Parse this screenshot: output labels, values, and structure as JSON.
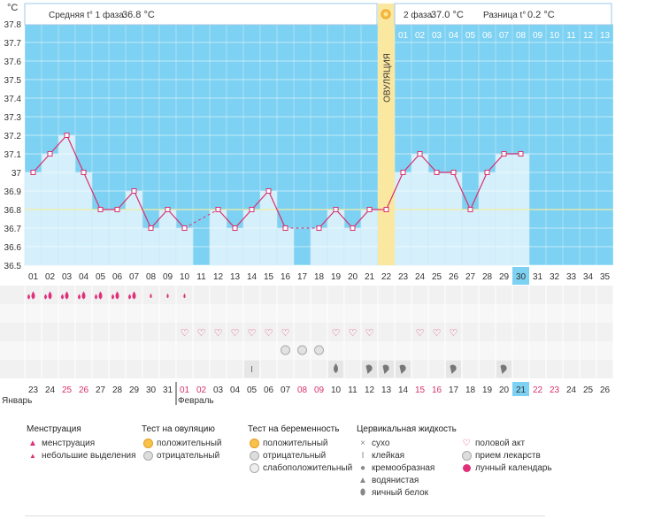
{
  "header": {
    "unit": "°C",
    "phase1_label": "Средняя t° 1 фаза",
    "phase1_value": "36.8 °C",
    "phase2_label": "2 фаза",
    "phase2_value": "37.0 °C",
    "diff_label": "Разница t°",
    "diff_value": "0.2 °C"
  },
  "chart_data": {
    "type": "line",
    "title": "",
    "ylabel": "°C",
    "ylim": [
      36.5,
      37.8
    ],
    "yticks": [
      "36.5",
      "36.6",
      "36.7",
      "36.8",
      "36.9",
      "37",
      "37.1",
      "37.2",
      "37.3",
      "37.4",
      "37.5",
      "37.6",
      "37.7",
      "37.8"
    ],
    "cycle_days": [
      "01",
      "02",
      "03",
      "04",
      "05",
      "06",
      "07",
      "08",
      "09",
      "10",
      "11",
      "12",
      "13",
      "14",
      "15",
      "16",
      "17",
      "18",
      "19",
      "20",
      "21",
      "22",
      "23",
      "24",
      "25",
      "26",
      "27",
      "28",
      "29",
      "30",
      "31",
      "32",
      "33",
      "34",
      "35"
    ],
    "temperatures": [
      37.0,
      37.1,
      37.2,
      37.0,
      36.8,
      36.8,
      36.9,
      36.7,
      36.8,
      36.7,
      null,
      36.8,
      36.7,
      36.8,
      36.9,
      36.7,
      null,
      36.7,
      36.8,
      36.7,
      36.8,
      36.8,
      37.0,
      37.1,
      37.0,
      37.0,
      36.8,
      37.0,
      37.1,
      37.1,
      null,
      null,
      null,
      null,
      null
    ],
    "coverline": 36.8,
    "ovulation_day": 22,
    "current_cycle_day": 30,
    "phase2_day_labels": [
      "01",
      "02",
      "03",
      "04",
      "05",
      "06",
      "07",
      "08",
      "09",
      "10",
      "11",
      "12",
      "13"
    ],
    "ovulation_label": "ОВУЛЯЦИЯ",
    "calendar_dates": [
      "23",
      "24",
      "25",
      "26",
      "27",
      "28",
      "29",
      "30",
      "31",
      "01",
      "02",
      "03",
      "04",
      "05",
      "06",
      "07",
      "08",
      "09",
      "10",
      "11",
      "12",
      "13",
      "14",
      "15",
      "16",
      "17",
      "18",
      "19",
      "20",
      "21",
      "22",
      "23",
      "24",
      "25",
      "26"
    ],
    "weekend_indices": [
      2,
      3,
      9,
      10,
      16,
      17,
      23,
      24,
      30,
      31
    ],
    "month1": "Январь",
    "month2": "Февраль",
    "menstruation": [
      2,
      2,
      2,
      2,
      2,
      2,
      2,
      1,
      1,
      1
    ],
    "sex_days": [
      10,
      11,
      12,
      13,
      14,
      15,
      16,
      19,
      20,
      21,
      24,
      25,
      26
    ],
    "pregnancy_test_days": [
      16,
      17,
      18
    ],
    "cervical": [
      {
        "day": 14,
        "type": "sticky"
      },
      {
        "day": 19,
        "type": "watery"
      },
      {
        "day": 21,
        "type": "creamy"
      },
      {
        "day": 22,
        "type": "creamy"
      },
      {
        "day": 23,
        "type": "creamy"
      },
      {
        "day": 26,
        "type": "creamy"
      },
      {
        "day": 29,
        "type": "creamy"
      }
    ]
  },
  "legend": {
    "menstruation": {
      "title": "Менструация",
      "items": [
        "менструация",
        "небольшие выделения"
      ]
    },
    "ovulation_test": {
      "title": "Тест на овуляцию",
      "items": [
        "положительный",
        "отрицательный"
      ]
    },
    "pregnancy_test": {
      "title": "Тест на беременность",
      "items": [
        "положительный",
        "отрицательный",
        "слабоположительный"
      ]
    },
    "cervical": {
      "title": "Цервикальная жидкость",
      "items": [
        "сухо",
        "клейкая",
        "кремообразная",
        "водянистая",
        "яичный белок"
      ]
    },
    "other": {
      "items": [
        "половой акт",
        "прием лекарств",
        "лунный календарь"
      ]
    }
  }
}
